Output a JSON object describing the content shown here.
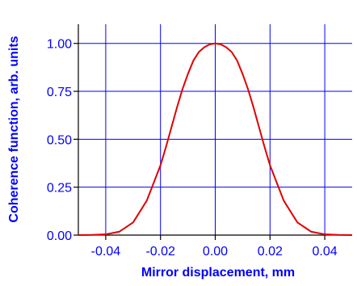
{
  "chart_data": {
    "type": "line",
    "title": "",
    "xlabel": "Mirror displacement, mm",
    "ylabel": "Coherence function, arb. units",
    "xlim": [
      -0.05,
      0.05
    ],
    "ylim": [
      0.0,
      1.1
    ],
    "x_ticks": [
      -0.04,
      -0.02,
      0.0,
      0.02,
      0.04
    ],
    "x_tick_labels": [
      "-0.04",
      "-0.02",
      "0.00",
      "0.02",
      "0.04"
    ],
    "y_ticks": [
      0.0,
      0.25,
      0.5,
      0.75,
      1.0
    ],
    "y_tick_labels": [
      "0.00",
      "0.25",
      "0.50",
      "0.75",
      "1.00"
    ],
    "grid": true,
    "series": [
      {
        "color": "#e00000",
        "x": [
          -0.05,
          -0.045,
          -0.04,
          -0.035,
          -0.03,
          -0.025,
          -0.02,
          -0.018,
          -0.016,
          -0.014,
          -0.012,
          -0.01,
          -0.008,
          -0.006,
          -0.004,
          -0.002,
          0.0,
          0.002,
          0.004,
          0.006,
          0.008,
          0.01,
          0.012,
          0.014,
          0.016,
          0.018,
          0.02,
          0.025,
          0.03,
          0.035,
          0.04,
          0.045,
          0.05
        ],
        "y": [
          0.0,
          0.001,
          0.004,
          0.018,
          0.066,
          0.18,
          0.364,
          0.46,
          0.562,
          0.665,
          0.76,
          0.84,
          0.91,
          0.955,
          0.98,
          0.995,
          1.0,
          0.995,
          0.98,
          0.955,
          0.91,
          0.84,
          0.76,
          0.665,
          0.562,
          0.46,
          0.364,
          0.18,
          0.066,
          0.018,
          0.004,
          0.001,
          0.0
        ]
      }
    ]
  },
  "colors": {
    "grid": "#0000ff",
    "axis_text": "#0000ff",
    "frame": "#000000",
    "curve": "#e00000"
  }
}
